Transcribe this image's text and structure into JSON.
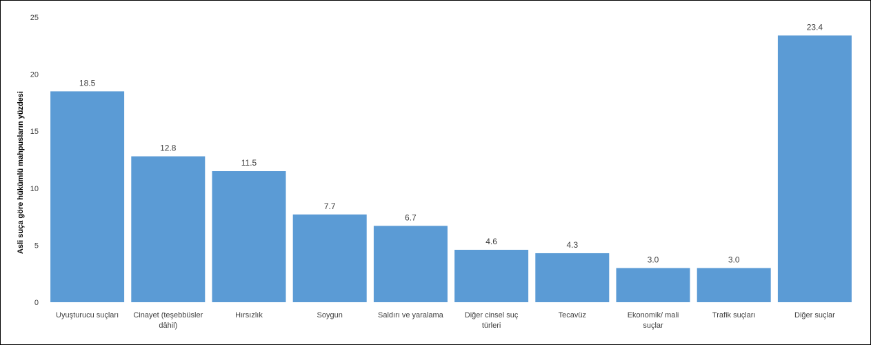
{
  "chart_data": {
    "type": "bar",
    "title": "",
    "xlabel": "",
    "ylabel": "Asli suça göre hükümlü mahpusların yüzdesi",
    "ylim": [
      0,
      25
    ],
    "yticks": [
      0,
      5,
      10,
      15,
      20,
      25
    ],
    "grid": false,
    "legend": "none",
    "bar_color": "#5B9BD5",
    "categories": [
      [
        "Uyuşturucu suçları"
      ],
      [
        "Cinayet (teşebbüsler",
        "dâhil)"
      ],
      [
        "Hırsızlık"
      ],
      [
        "Soygun"
      ],
      [
        "Saldırı ve yaralama"
      ],
      [
        "Diğer cinsel suç",
        "türleri"
      ],
      [
        "Tecavüz"
      ],
      [
        "Ekonomik/ mali",
        "suçlar"
      ],
      [
        "Trafik suçları"
      ],
      [
        "Diğer suçlar"
      ]
    ],
    "values": [
      18.5,
      12.8,
      11.5,
      7.7,
      6.7,
      4.6,
      4.3,
      3.0,
      3.0,
      23.4
    ],
    "data_labels": [
      "18.5",
      "12.8",
      "11.5",
      "7.7",
      "6.7",
      "4.6",
      "4.3",
      "3.0",
      "3.0",
      "23.4"
    ]
  }
}
